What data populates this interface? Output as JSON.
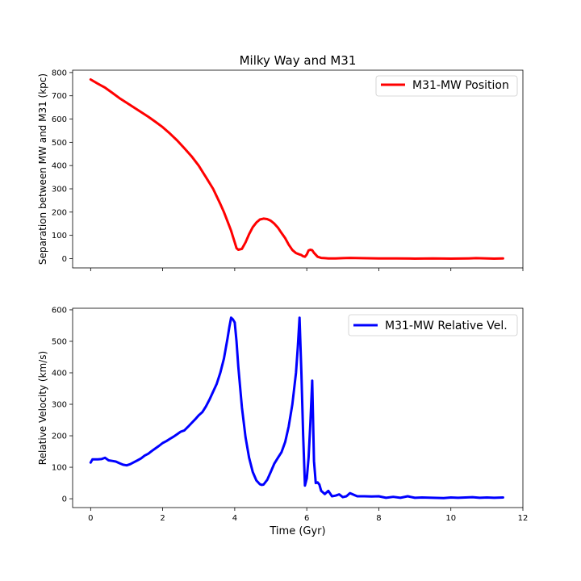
{
  "chart_data": [
    {
      "type": "line",
      "title": "Milky Way and M31",
      "xlabel": "",
      "ylabel": "Separation between MW and M31 (kpc)",
      "xlim": [
        -0.5,
        12
      ],
      "ylim": [
        -40,
        810
      ],
      "xticks": [
        0,
        2,
        4,
        6,
        8,
        10,
        12
      ],
      "yticks": [
        0,
        100,
        200,
        300,
        400,
        500,
        600,
        700,
        800
      ],
      "show_x_tick_labels": false,
      "grid": false,
      "legend_position": "upper right",
      "series": [
        {
          "name": "M31-MW Position",
          "color": "#ff0000",
          "x": [
            0,
            0.2,
            0.4,
            0.6,
            0.8,
            1.0,
            1.2,
            1.4,
            1.6,
            1.8,
            2.0,
            2.2,
            2.4,
            2.6,
            2.8,
            3.0,
            3.2,
            3.4,
            3.6,
            3.7,
            3.8,
            3.9,
            3.95,
            4.0,
            4.05,
            4.1,
            4.2,
            4.3,
            4.4,
            4.5,
            4.6,
            4.7,
            4.8,
            4.9,
            5.0,
            5.1,
            5.2,
            5.3,
            5.4,
            5.5,
            5.6,
            5.7,
            5.8,
            5.85,
            5.9,
            5.95,
            6.0,
            6.05,
            6.1,
            6.15,
            6.2,
            6.3,
            6.4,
            6.5,
            6.6,
            6.8,
            7.0,
            7.2,
            7.5,
            8.0,
            8.5,
            9.0,
            9.5,
            10.0,
            10.5,
            10.7,
            11.0,
            11.2,
            11.45
          ],
          "y": [
            770,
            752,
            735,
            713,
            690,
            670,
            650,
            630,
            610,
            588,
            565,
            538,
            508,
            475,
            440,
            400,
            350,
            300,
            235,
            200,
            160,
            120,
            95,
            70,
            45,
            38,
            42,
            70,
            105,
            135,
            155,
            168,
            172,
            170,
            163,
            150,
            133,
            110,
            88,
            60,
            37,
            24,
            18,
            15,
            10,
            8,
            18,
            35,
            38,
            36,
            25,
            8,
            3,
            2,
            1,
            1,
            2,
            3,
            2,
            1,
            1,
            0,
            1,
            0,
            1,
            2,
            1,
            0,
            1
          ]
        }
      ]
    },
    {
      "type": "line",
      "title": "",
      "xlabel": "Time (Gyr)",
      "ylabel": "Relative Velocity (km/s)",
      "xlim": [
        -0.5,
        12
      ],
      "ylim": [
        -28,
        605
      ],
      "xticks": [
        0,
        2,
        4,
        6,
        8,
        10,
        12
      ],
      "yticks": [
        0,
        100,
        200,
        300,
        400,
        500,
        600
      ],
      "grid": false,
      "legend_position": "upper right",
      "series": [
        {
          "name": "M31-MW Relative Vel.",
          "color": "#0000ff",
          "x": [
            0,
            0.05,
            0.1,
            0.2,
            0.3,
            0.4,
            0.5,
            0.6,
            0.7,
            0.8,
            0.9,
            1.0,
            1.1,
            1.2,
            1.3,
            1.4,
            1.5,
            1.6,
            1.7,
            1.8,
            1.9,
            2.0,
            2.1,
            2.2,
            2.3,
            2.4,
            2.5,
            2.6,
            2.7,
            2.8,
            2.9,
            3.0,
            3.1,
            3.2,
            3.3,
            3.4,
            3.5,
            3.6,
            3.7,
            3.8,
            3.85,
            3.9,
            3.95,
            4.0,
            4.05,
            4.1,
            4.2,
            4.3,
            4.4,
            4.5,
            4.6,
            4.7,
            4.75,
            4.8,
            4.9,
            5.0,
            5.1,
            5.2,
            5.3,
            5.4,
            5.5,
            5.6,
            5.7,
            5.75,
            5.8,
            5.85,
            5.9,
            5.95,
            6.0,
            6.05,
            6.1,
            6.15,
            6.2,
            6.25,
            6.3,
            6.35,
            6.4,
            6.5,
            6.6,
            6.7,
            6.8,
            6.9,
            7.0,
            7.1,
            7.2,
            7.4,
            7.6,
            7.8,
            8.0,
            8.2,
            8.4,
            8.6,
            8.8,
            9.0,
            9.2,
            9.5,
            9.8,
            10.0,
            10.2,
            10.4,
            10.6,
            10.8,
            11.0,
            11.2,
            11.45
          ],
          "y": [
            115,
            125,
            125,
            125,
            126,
            130,
            122,
            120,
            118,
            113,
            108,
            106,
            110,
            116,
            122,
            128,
            137,
            143,
            152,
            160,
            168,
            177,
            183,
            190,
            197,
            205,
            213,
            217,
            228,
            240,
            252,
            265,
            275,
            293,
            315,
            340,
            365,
            400,
            445,
            510,
            545,
            575,
            570,
            560,
            500,
            420,
            290,
            195,
            130,
            85,
            58,
            46,
            44,
            45,
            60,
            85,
            112,
            130,
            148,
            180,
            230,
            300,
            400,
            480,
            575,
            400,
            200,
            42,
            65,
            130,
            240,
            375,
            120,
            50,
            52,
            45,
            25,
            15,
            25,
            8,
            10,
            14,
            5,
            8,
            18,
            8,
            8,
            7,
            8,
            3,
            6,
            3,
            8,
            3,
            4,
            3,
            2,
            4,
            3,
            4,
            5,
            3,
            4,
            3,
            4
          ]
        }
      ]
    }
  ]
}
